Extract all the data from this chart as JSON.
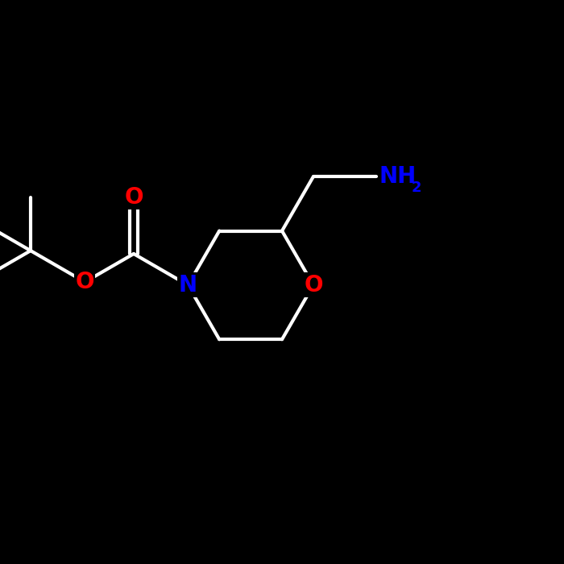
{
  "bg_color": "#000000",
  "bond_color": "#ffffff",
  "N_color": "#0000ff",
  "O_color": "#ff0000",
  "NH2_color": "#0000ff",
  "line_width": 3.0,
  "fig_size": [
    7.0,
    7.0
  ],
  "dpi": 100,
  "font_size": 20,
  "sub_font_size": 13,
  "xlim": [
    -3.5,
    5.5
  ],
  "ylim": [
    -4.5,
    4.0
  ]
}
